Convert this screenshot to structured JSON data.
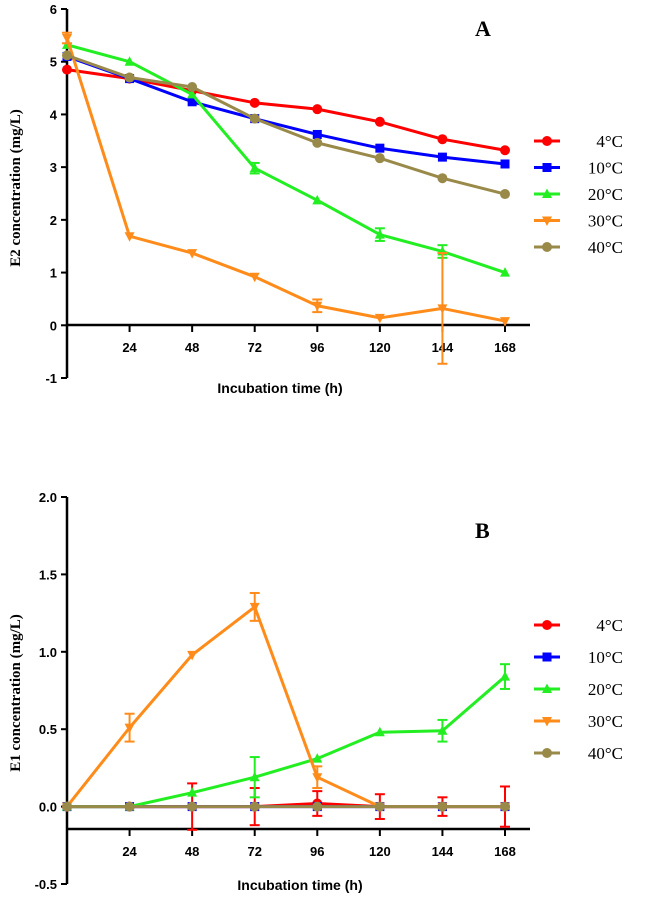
{
  "chart_data": [
    {
      "type": "line",
      "panel_label": "A",
      "xlabel": "Incubation time (h)",
      "ylabel": "E2 concentration (mg/L)",
      "xlim": [
        0,
        168
      ],
      "ylim": [
        -1,
        6
      ],
      "x_ticks": [
        24,
        48,
        72,
        96,
        120,
        144,
        168
      ],
      "y_ticks": [
        -1,
        0,
        1,
        2,
        3,
        4,
        5,
        6
      ],
      "y_tick_labels": [
        "-1",
        "0",
        "1",
        "2",
        "3",
        "4",
        "5",
        "6"
      ],
      "legend_position": "right",
      "series": [
        {
          "name": "4°C",
          "color": "#ff0000",
          "marker": "circle",
          "x": [
            0,
            24,
            48,
            72,
            96,
            120,
            144,
            168
          ],
          "y": [
            4.85,
            4.68,
            4.45,
            4.22,
            4.1,
            3.86,
            3.53,
            3.32
          ],
          "err": [
            0,
            0,
            0,
            0,
            0,
            0,
            0,
            0
          ]
        },
        {
          "name": "10°C",
          "color": "#0000ff",
          "marker": "square",
          "x": [
            0,
            24,
            48,
            72,
            96,
            120,
            144,
            168
          ],
          "y": [
            5.1,
            4.68,
            4.24,
            3.92,
            3.62,
            3.36,
            3.19,
            3.06
          ],
          "err": [
            0,
            0,
            0,
            0,
            0,
            0,
            0,
            0
          ]
        },
        {
          "name": "20°C",
          "color": "#22ee22",
          "marker": "triangle-up",
          "x": [
            0,
            24,
            48,
            72,
            96,
            120,
            144,
            168
          ],
          "y": [
            5.32,
            5.0,
            4.38,
            2.98,
            2.37,
            1.72,
            1.4,
            1.0
          ],
          "err": [
            0,
            0,
            0,
            0.1,
            0,
            0.12,
            0.12,
            0
          ]
        },
        {
          "name": "30°C",
          "color": "#ff8c1a",
          "marker": "triangle-down",
          "x": [
            0,
            24,
            48,
            72,
            96,
            120,
            144,
            168
          ],
          "y": [
            5.45,
            1.69,
            1.37,
            0.92,
            0.37,
            0.14,
            0.32,
            0.08
          ],
          "err": [
            0.1,
            0,
            0,
            0,
            0.12,
            0,
            1.05,
            0
          ]
        },
        {
          "name": "40°C",
          "color": "#998a4a",
          "marker": "circle",
          "x": [
            0,
            24,
            48,
            72,
            96,
            120,
            144,
            168
          ],
          "y": [
            5.12,
            4.7,
            4.52,
            3.92,
            3.46,
            3.17,
            2.79,
            2.49
          ],
          "err": [
            0,
            0,
            0,
            0,
            0,
            0,
            0,
            0
          ]
        }
      ]
    },
    {
      "type": "line",
      "panel_label": "B",
      "xlabel": "Incubation time (h)",
      "ylabel": "E1 concentration (mg/L)",
      "xlim": [
        0,
        168
      ],
      "ylim": [
        -0.5,
        2.0
      ],
      "x_ticks": [
        24,
        48,
        72,
        96,
        120,
        144,
        168
      ],
      "y_ticks": [
        -0.5,
        0,
        0.5,
        1.0,
        1.5,
        2.0
      ],
      "y_tick_labels": [
        "-0.5",
        "0.0",
        "0.5",
        "1.0",
        "1.5",
        "2.0"
      ],
      "legend_position": "right",
      "series": [
        {
          "name": "4°C",
          "color": "#ff0000",
          "marker": "circle",
          "x": [
            0,
            24,
            48,
            72,
            96,
            120,
            144,
            168
          ],
          "y": [
            0,
            0,
            0,
            0,
            0.02,
            0,
            0,
            0
          ],
          "err": [
            0,
            0,
            0.15,
            0.12,
            0.08,
            0.08,
            0.06,
            0.13
          ]
        },
        {
          "name": "10°C",
          "color": "#0000ff",
          "marker": "square",
          "x": [
            0,
            24,
            48,
            72,
            96,
            120,
            144,
            168
          ],
          "y": [
            0,
            0,
            0,
            0,
            0,
            0,
            0,
            0
          ],
          "err": [
            0,
            0,
            0,
            0,
            0,
            0,
            0,
            0
          ]
        },
        {
          "name": "20°C",
          "color": "#22ee22",
          "marker": "triangle-up",
          "x": [
            0,
            24,
            48,
            72,
            96,
            120,
            144,
            168
          ],
          "y": [
            0,
            0,
            0.09,
            0.19,
            0.31,
            0.48,
            0.49,
            0.84
          ],
          "err": [
            0,
            0,
            0,
            0.13,
            0,
            0,
            0.07,
            0.08
          ]
        },
        {
          "name": "30°C",
          "color": "#ff8c1a",
          "marker": "triangle-down",
          "x": [
            0,
            24,
            48,
            72,
            96,
            120,
            144,
            168
          ],
          "y": [
            0,
            0.51,
            0.98,
            1.29,
            0.19,
            0,
            0,
            0
          ],
          "err": [
            0,
            0.09,
            0,
            0.09,
            0.07,
            0,
            0,
            0
          ]
        },
        {
          "name": "40°C",
          "color": "#998a4a",
          "marker": "circle",
          "x": [
            0,
            24,
            48,
            72,
            96,
            120,
            144,
            168
          ],
          "y": [
            0,
            0,
            0,
            0,
            0,
            0,
            0,
            0
          ],
          "err": [
            0,
            0,
            0,
            0,
            0,
            0,
            0,
            0
          ]
        }
      ]
    }
  ]
}
